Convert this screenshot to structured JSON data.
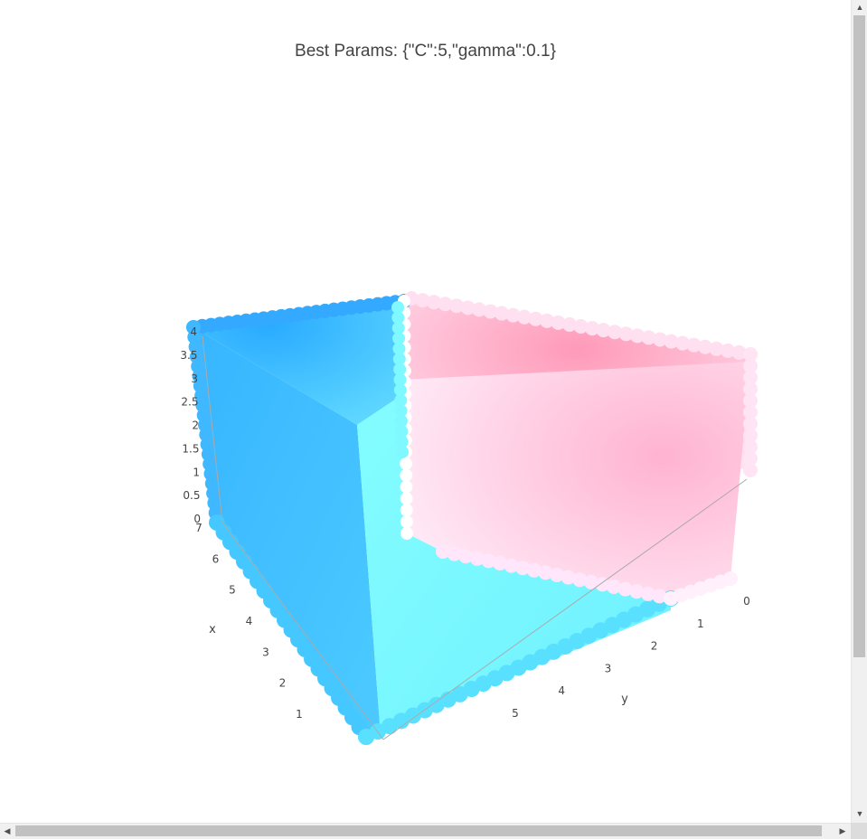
{
  "chart_data": {
    "type": "scatter3d",
    "title": "Best Params: {\"C\":5,\"gamma\":0.1}",
    "x_axis": {
      "label": "x",
      "ticks": [
        "1",
        "2",
        "3",
        "4",
        "5",
        "6",
        "7"
      ],
      "range": [
        0,
        7
      ]
    },
    "y_axis": {
      "label": "y",
      "ticks": [
        "0",
        "1",
        "2",
        "3",
        "4",
        "5"
      ],
      "range": [
        0,
        6
      ]
    },
    "z_axis": {
      "label": "",
      "ticks": [
        "0",
        "0.5",
        "1",
        "1.5",
        "2",
        "2.5",
        "3",
        "3.5",
        "4"
      ],
      "range": [
        0,
        4
      ]
    },
    "grid": true,
    "marker_colors": {
      "class_a": [
        "#29aaff",
        "#84ffff"
      ],
      "class_b": [
        "#ffffff",
        "#ff9ab9"
      ]
    }
  },
  "scrollbars": {
    "up_arrow": "▲",
    "down_arrow": "▼",
    "left_arrow": "◀",
    "right_arrow": "▶"
  }
}
